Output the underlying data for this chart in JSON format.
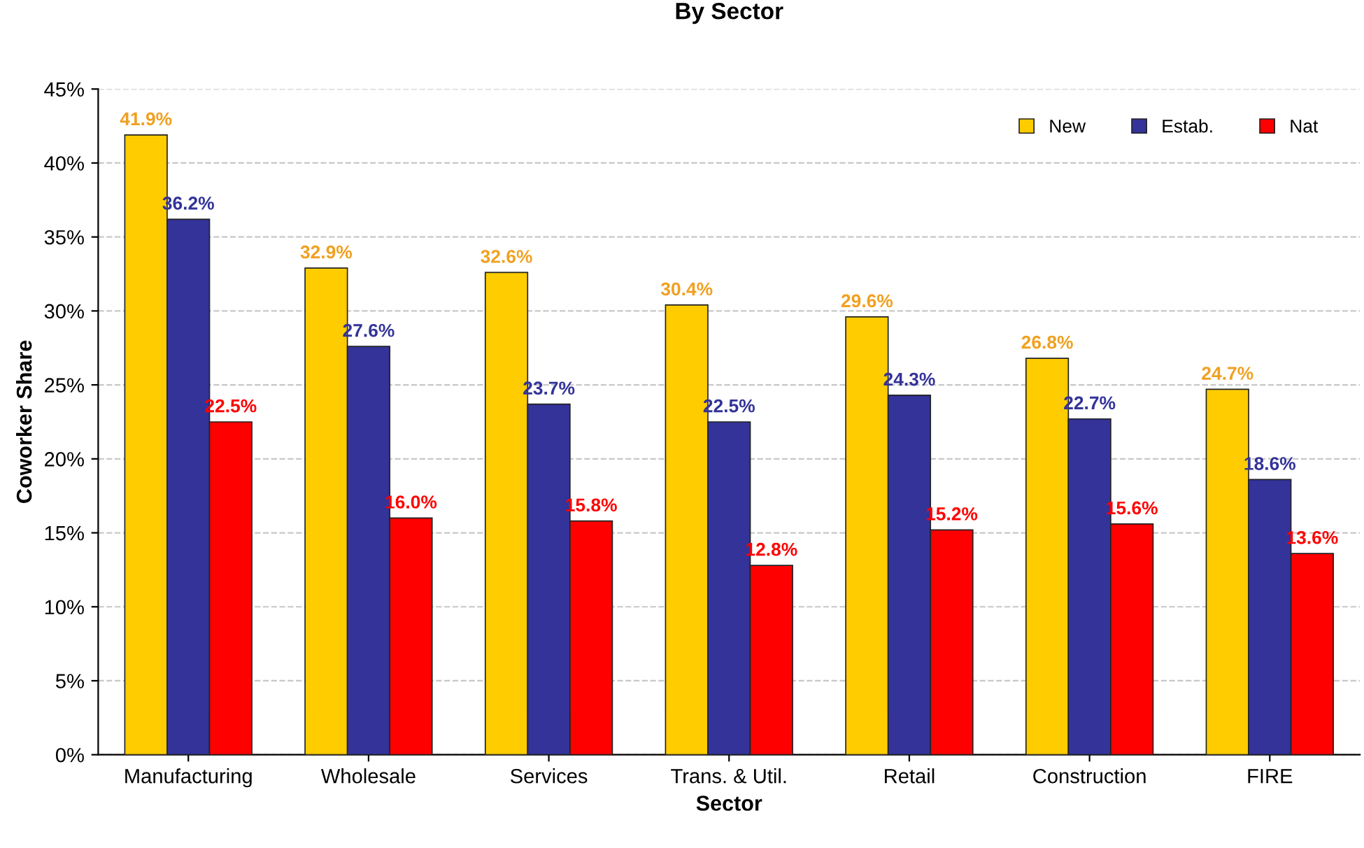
{
  "chart_data": {
    "type": "bar",
    "title": "By Sector",
    "xlabel": "Sector",
    "ylabel": "Coworker Share",
    "categories": [
      "Manufacturing",
      "Wholesale",
      "Services",
      "Trans. & Util.",
      "Retail",
      "Construction",
      "FIRE"
    ],
    "series": [
      {
        "name": "New",
        "color": "#ffcc00",
        "values": [
          41.9,
          32.9,
          32.6,
          30.4,
          29.6,
          26.8,
          24.7
        ],
        "value_labels": [
          "41.9%",
          "32.9%",
          "32.6%",
          "30.4%",
          "29.6%",
          "26.8%",
          "24.7%"
        ]
      },
      {
        "name": "Estab.",
        "color": "#333399",
        "values": [
          36.2,
          27.6,
          23.7,
          22.5,
          24.3,
          22.7,
          18.6
        ],
        "value_labels": [
          "36.2%",
          "27.6%",
          "23.7%",
          "22.5%",
          "24.3%",
          "22.7%",
          "18.6%"
        ]
      },
      {
        "name": "Nat",
        "color": "#ff0000",
        "values": [
          22.5,
          16.0,
          15.8,
          12.8,
          15.2,
          15.6,
          13.6
        ],
        "value_labels": [
          "22.5%",
          "16.0%",
          "15.8%",
          "12.8%",
          "15.2%",
          "15.6%",
          "13.6%"
        ]
      }
    ],
    "ylim": [
      0,
      45
    ],
    "yticks": [
      {
        "value": 0,
        "label": "0%"
      },
      {
        "value": 5,
        "label": "5%"
      },
      {
        "value": 10,
        "label": "10%"
      },
      {
        "value": 15,
        "label": "15%"
      },
      {
        "value": 20,
        "label": "20%"
      },
      {
        "value": 25,
        "label": "25%"
      },
      {
        "value": 30,
        "label": "30%"
      },
      {
        "value": 35,
        "label": "35%"
      },
      {
        "value": 40,
        "label": "40%"
      },
      {
        "value": 45,
        "label": "45%"
      }
    ],
    "grid": "y",
    "legend": "top right"
  }
}
